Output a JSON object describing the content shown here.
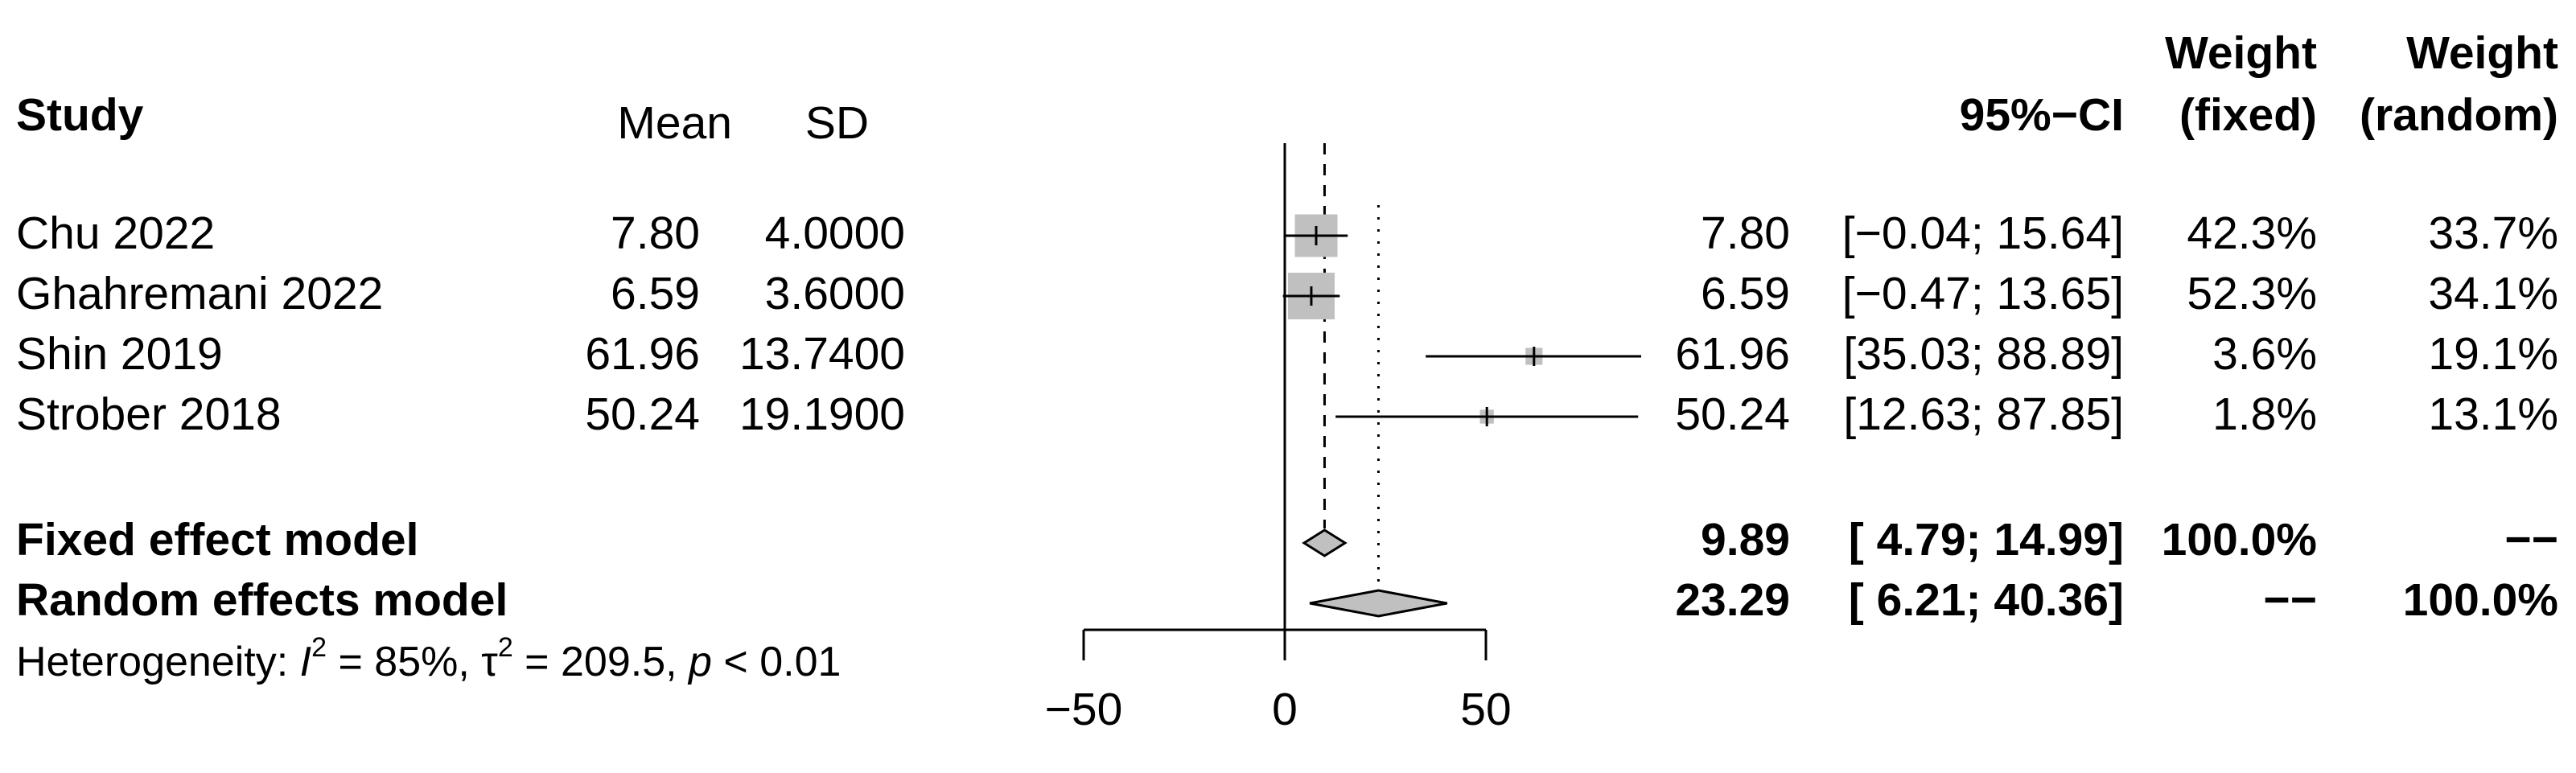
{
  "header": {
    "study": "Study",
    "mean": "Mean",
    "sd": "SD",
    "ci": "95%−CI",
    "weight_fixed_1": "Weight",
    "weight_fixed_2": "(fixed)",
    "weight_random_1": "Weight",
    "weight_random_2": "(random)"
  },
  "studies": [
    {
      "name": "Chu 2022",
      "mean": "7.80",
      "sd": "4.0000",
      "est": "7.80",
      "ci": "[−0.04; 15.64]",
      "w_fixed": "42.3%",
      "w_random": "33.7%"
    },
    {
      "name": "Ghahremani 2022",
      "mean": "6.59",
      "sd": "3.6000",
      "est": "6.59",
      "ci": "[−0.47; 13.65]",
      "w_fixed": "52.3%",
      "w_random": "34.1%"
    },
    {
      "name": "Shin 2019",
      "mean": "61.96",
      "sd": "13.7400",
      "est": "61.96",
      "ci": "[35.03; 88.89]",
      "w_fixed": "3.6%",
      "w_random": "19.1%"
    },
    {
      "name": "Strober 2018",
      "mean": "50.24",
      "sd": "19.1900",
      "est": "50.24",
      "ci": "[12.63; 87.85]",
      "w_fixed": "1.8%",
      "w_random": "13.1%"
    }
  ],
  "summaries": [
    {
      "name": "Fixed effect model",
      "est": "9.89",
      "ci": "[ 4.79; 14.99]",
      "w_fixed": "100.0%",
      "w_random": "−−"
    },
    {
      "name": "Random effects model",
      "est": "23.29",
      "ci": "[ 6.21; 40.36]",
      "w_fixed": "−−",
      "w_random": "100.0%"
    }
  ],
  "heterogeneity": {
    "prefix": "Heterogeneity: ",
    "i_symbol": "I",
    "i_exp": "2",
    "i_value": " = 85%, ",
    "tau_symbol": "τ",
    "tau_exp": "2",
    "tau_value": " = 209.5, ",
    "p_symbol": "p",
    "p_value": " < 0.01"
  },
  "colors": {
    "square_fill": "#c0c0c0",
    "diamond_fill": "#c0c0c0",
    "line": "#000000"
  },
  "chart_data": {
    "type": "forest",
    "xlim": [
      -50,
      50
    ],
    "x_ticks": [
      -50,
      0,
      50
    ],
    "x_tick_labels": [
      "−50",
      "0",
      "50"
    ],
    "null_line": 0,
    "studies": [
      {
        "name": "Chu 2022",
        "est": 7.8,
        "lower": -0.04,
        "upper": 15.64,
        "weight_fixed": 42.3
      },
      {
        "name": "Ghahremani 2022",
        "est": 6.59,
        "lower": -0.47,
        "upper": 13.65,
        "weight_fixed": 52.3
      },
      {
        "name": "Shin 2019",
        "est": 61.96,
        "lower": 35.03,
        "upper": 88.89,
        "weight_fixed": 3.6
      },
      {
        "name": "Strober 2018",
        "est": 50.24,
        "lower": 12.63,
        "upper": 87.85,
        "weight_fixed": 1.8
      }
    ],
    "fixed": {
      "est": 9.89,
      "lower": 4.79,
      "upper": 14.99
    },
    "random": {
      "est": 23.29,
      "lower": 6.21,
      "upper": 40.36
    }
  }
}
